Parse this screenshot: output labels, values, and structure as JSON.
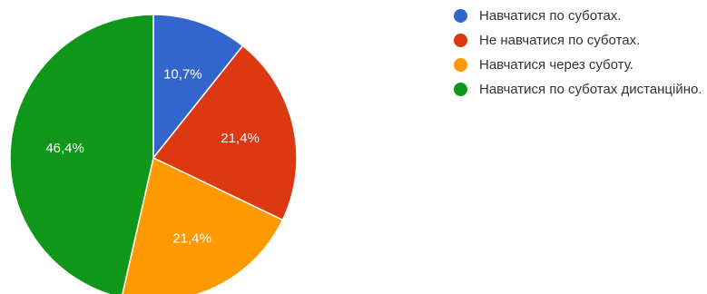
{
  "chart_data": {
    "type": "pie",
    "title": "",
    "legend_placement": "right",
    "start_angle_deg": 90,
    "direction": "clockwise",
    "slices": [
      {
        "label": "Навчатися по суботах.",
        "value": 10.7,
        "display": "10,7%",
        "color": "#3366cc"
      },
      {
        "label": "Не навчатися по суботах.",
        "value": 21.4,
        "display": "21,4%",
        "color": "#dc3912"
      },
      {
        "label": "Навчатися через суботу.",
        "value": 21.4,
        "display": "21,4%",
        "color": "#ff9900"
      },
      {
        "label": "Навчатися по суботах дистанційно.",
        "value": 46.4,
        "display": "46,4%",
        "color": "#109618"
      }
    ]
  }
}
